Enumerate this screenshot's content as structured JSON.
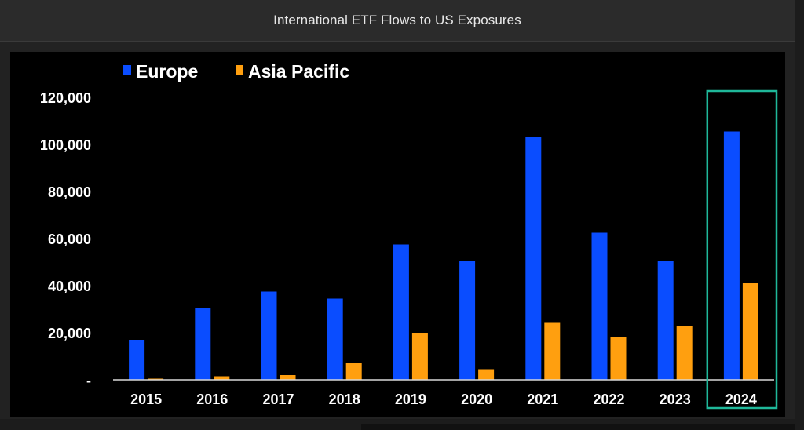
{
  "window": {
    "title": "International ETF Flows to US Exposures"
  },
  "colors": {
    "europe": "#0a4dff",
    "asia_pacific": "#ff9f0f",
    "highlight": "#1fb89a",
    "axis_text": "#ffffff",
    "background": "#000000"
  },
  "chart_data": {
    "type": "bar",
    "title": "",
    "xlabel": "",
    "ylabel": "",
    "categories": [
      "2015",
      "2016",
      "2017",
      "2018",
      "2019",
      "2020",
      "2021",
      "2022",
      "2023",
      "2024"
    ],
    "series": [
      {
        "name": "Europe",
        "values": [
          17000,
          30500,
          37500,
          34500,
          57500,
          50500,
          103000,
          62500,
          50500,
          105500
        ]
      },
      {
        "name": "Asia Pacific",
        "values": [
          500,
          1500,
          2000,
          7000,
          20000,
          4500,
          24500,
          18000,
          23000,
          41000
        ]
      }
    ],
    "ylim": [
      0,
      120000
    ],
    "y_ticks": [
      {
        "value": 0,
        "label": "-"
      },
      {
        "value": 20000,
        "label": "20,000"
      },
      {
        "value": 40000,
        "label": "40,000"
      },
      {
        "value": 60000,
        "label": "60,000"
      },
      {
        "value": 80000,
        "label": "80,000"
      },
      {
        "value": 100000,
        "label": "100,000"
      },
      {
        "value": 120000,
        "label": "120,000"
      }
    ],
    "grid": false,
    "legend_position": "top-left",
    "highlighted_category": "2024"
  }
}
